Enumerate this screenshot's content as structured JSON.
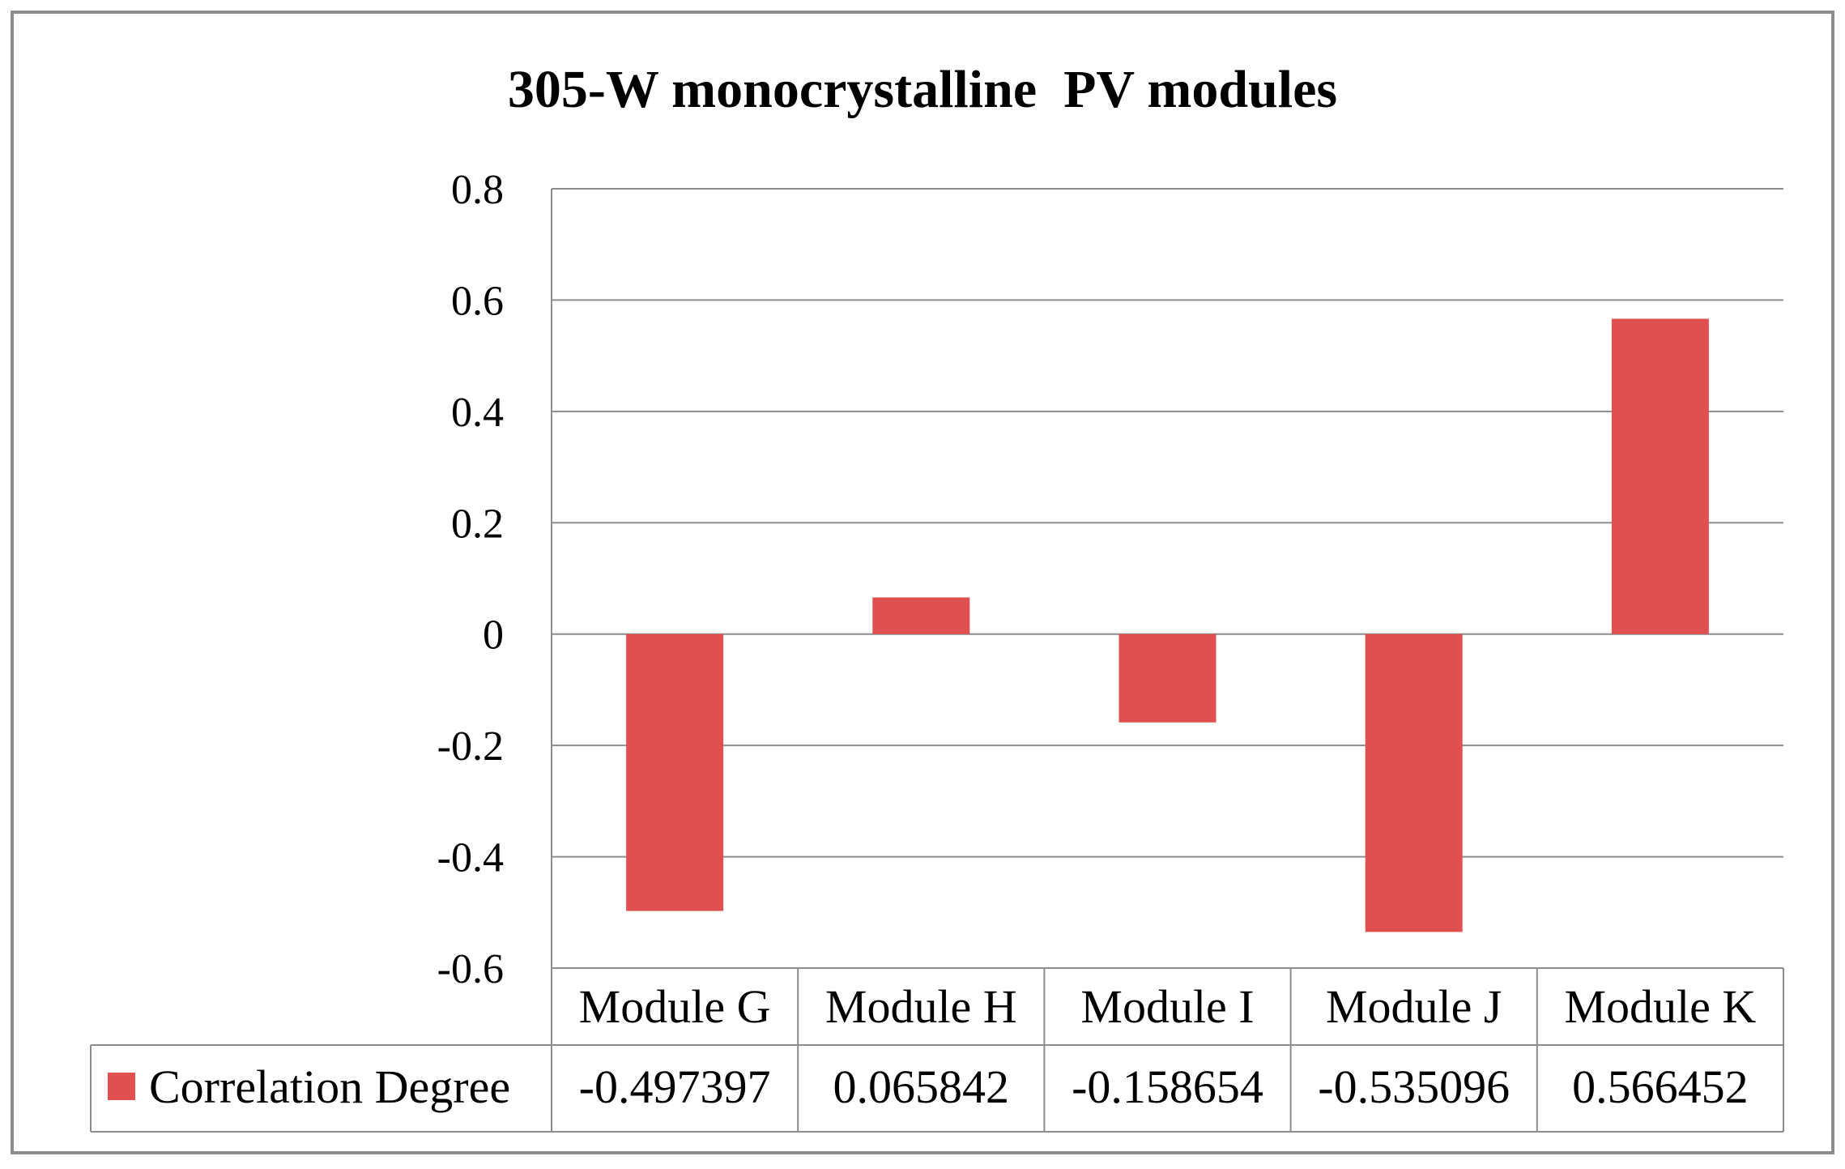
{
  "chart_data": {
    "type": "bar",
    "title": "305-W monocrystalline  PV modules",
    "categories": [
      "Module G",
      "Module H",
      "Module I",
      "Module J",
      "Module K"
    ],
    "series": [
      {
        "name": "Correlation Degree",
        "values": [
          -0.497397,
          0.065842,
          -0.158654,
          -0.535096,
          0.566452
        ],
        "value_labels": [
          "-0.497397",
          "0.065842",
          "-0.158654",
          "-0.535096",
          "0.566452"
        ],
        "color": "#e05050"
      }
    ],
    "ylim": [
      -0.6,
      0.8
    ],
    "yticks": [
      0.8,
      0.6,
      0.4,
      0.2,
      0,
      -0.2,
      -0.4,
      -0.6
    ],
    "ytick_labels": [
      "0.8",
      "0.6",
      "0.4",
      "0.2",
      "0",
      "-0.2",
      "-0.4",
      "-0.6"
    ],
    "xlabel": "",
    "ylabel": "",
    "grid": true,
    "legend": "data-table"
  },
  "colors": {
    "bar": "#e05050",
    "grid": "#8c8c8c",
    "frame": "#8c8c8c"
  }
}
